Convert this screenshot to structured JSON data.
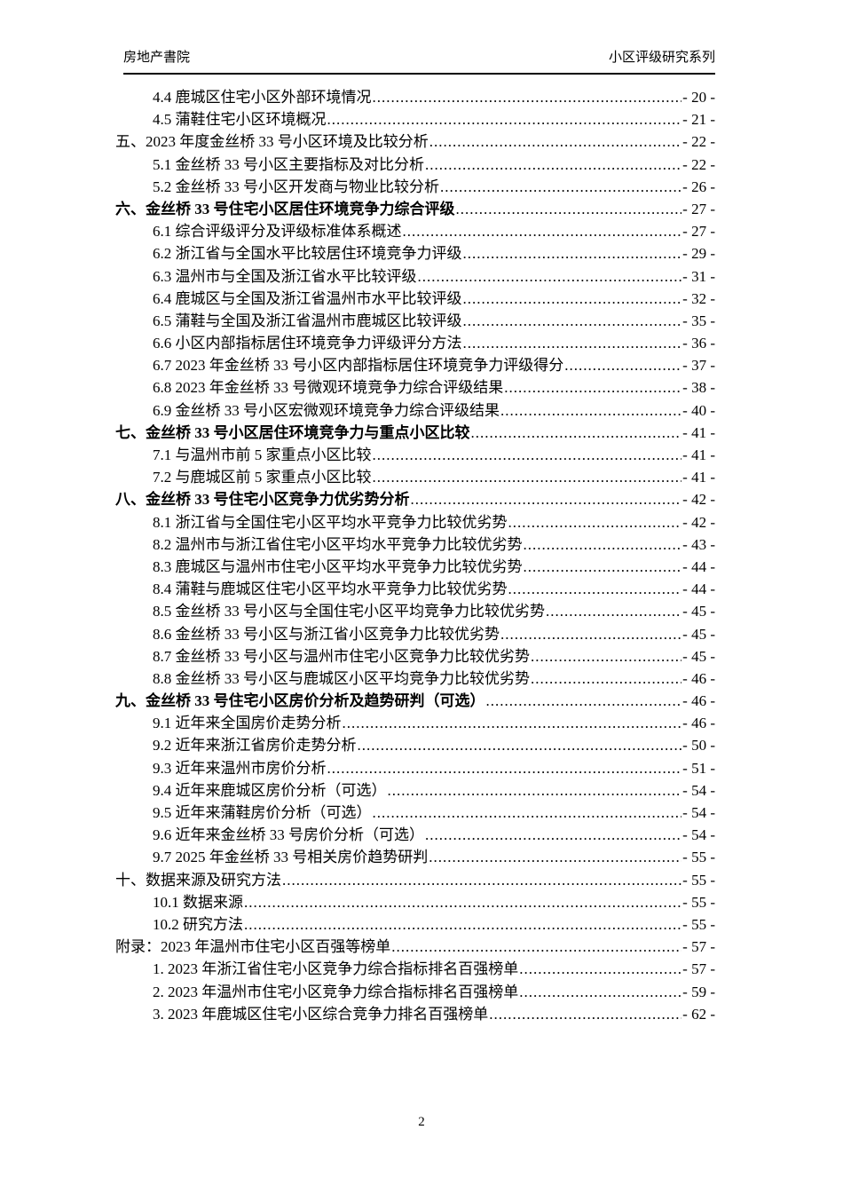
{
  "header": {
    "left_label": "房地产書院",
    "right_label": "小区评级研究系列"
  },
  "footer": {
    "page_number": "2"
  },
  "toc": {
    "entries": [
      {
        "label": "4.4 鹿城区住宅小区外部环境情况",
        "page": "- 20 -",
        "level": 2,
        "bold": false
      },
      {
        "label": "4.5 蒲鞋住宅小区环境概况",
        "page": "- 21 -",
        "level": 2,
        "bold": false
      },
      {
        "label": "五、2023 年度金丝桥 33 号小区环境及比较分析",
        "page": "- 22 -",
        "level": 1,
        "bold": false
      },
      {
        "label": "5.1 金丝桥 33 号小区主要指标及对比分析",
        "page": "- 22 -",
        "level": 2,
        "bold": false
      },
      {
        "label": "5.2 金丝桥 33 号小区开发商与物业比较分析",
        "page": "- 26 -",
        "level": 2,
        "bold": false
      },
      {
        "label": "六、金丝桥 33 号住宅小区居住环境竞争力综合评级",
        "page": "- 27 -",
        "level": 1,
        "bold": true
      },
      {
        "label": "6.1 综合评级评分及评级标准体系概述",
        "page": "- 27 -",
        "level": 2,
        "bold": false
      },
      {
        "label": "6.2 浙江省与全国水平比较居住环境竞争力评级",
        "page": "- 29 -",
        "level": 2,
        "bold": false
      },
      {
        "label": "6.3 温州市与全国及浙江省水平比较评级",
        "page": "- 31 -",
        "level": 2,
        "bold": false
      },
      {
        "label": "6.4 鹿城区与全国及浙江省温州市水平比较评级",
        "page": "- 32 -",
        "level": 2,
        "bold": false
      },
      {
        "label": "6.5 蒲鞋与全国及浙江省温州市鹿城区比较评级",
        "page": "- 35 -",
        "level": 2,
        "bold": false
      },
      {
        "label": "6.6 小区内部指标居住环境竞争力评级评分方法",
        "page": "- 36 -",
        "level": 2,
        "bold": false
      },
      {
        "label": "6.7 2023 年金丝桥 33 号小区内部指标居住环境竞争力评级得分",
        "page": "- 37 -",
        "level": 2,
        "bold": false
      },
      {
        "label": "6.8 2023 年金丝桥 33 号微观环境竞争力综合评级结果",
        "page": "- 38 -",
        "level": 2,
        "bold": false
      },
      {
        "label": "6.9 金丝桥 33 号小区宏微观环境竞争力综合评级结果",
        "page": "- 40 -",
        "level": 2,
        "bold": false
      },
      {
        "label": "七、金丝桥 33 号小区居住环境竞争力与重点小区比较",
        "page": "- 41 -",
        "level": 1,
        "bold": true
      },
      {
        "label": "7.1 与温州市前 5 家重点小区比较",
        "page": "- 41 -",
        "level": 2,
        "bold": false
      },
      {
        "label": "7.2 与鹿城区前 5 家重点小区比较",
        "page": "- 41 -",
        "level": 2,
        "bold": false
      },
      {
        "label": "八、金丝桥 33 号住宅小区竞争力优劣势分析",
        "page": "- 42 -",
        "level": 1,
        "bold": true
      },
      {
        "label": "8.1 浙江省与全国住宅小区平均水平竞争力比较优劣势",
        "page": "- 42 -",
        "level": 2,
        "bold": false
      },
      {
        "label": "8.2 温州市与浙江省住宅小区平均水平竞争力比较优劣势",
        "page": "- 43 -",
        "level": 2,
        "bold": false
      },
      {
        "label": "8.3 鹿城区与温州市住宅小区平均水平竞争力比较优劣势",
        "page": "- 44 -",
        "level": 2,
        "bold": false
      },
      {
        "label": "8.4 蒲鞋与鹿城区住宅小区平均水平竞争力比较优劣势",
        "page": "- 44 -",
        "level": 2,
        "bold": false
      },
      {
        "label": "8.5 金丝桥 33 号小区与全国住宅小区平均竞争力比较优劣势",
        "page": "- 45 -",
        "level": 2,
        "bold": false
      },
      {
        "label": "8.6 金丝桥 33 号小区与浙江省小区竞争力比较优劣势",
        "page": "- 45 -",
        "level": 2,
        "bold": false
      },
      {
        "label": "8.7 金丝桥 33 号小区与温州市住宅小区竞争力比较优劣势",
        "page": "- 45 -",
        "level": 2,
        "bold": false
      },
      {
        "label": "8.8 金丝桥 33 号小区与鹿城区小区平均竞争力比较优劣势",
        "page": "- 46 -",
        "level": 2,
        "bold": false
      },
      {
        "label": "九、金丝桥 33 号住宅小区房价分析及趋势研判（可选）",
        "page": "- 46 -",
        "level": 1,
        "bold": true
      },
      {
        "label": "9.1 近年来全国房价走势分析",
        "page": "- 46 -",
        "level": 2,
        "bold": false
      },
      {
        "label": "9.2 近年来浙江省房价走势分析",
        "page": "- 50 -",
        "level": 2,
        "bold": false
      },
      {
        "label": "9.3 近年来温州市房价分析",
        "page": "- 51 -",
        "level": 2,
        "bold": false
      },
      {
        "label": "9.4 近年来鹿城区房价分析（可选）",
        "page": "- 54 -",
        "level": 2,
        "bold": false
      },
      {
        "label": "9.5 近年来蒲鞋房价分析（可选）",
        "page": "- 54 -",
        "level": 2,
        "bold": false
      },
      {
        "label": "9.6 近年来金丝桥 33 号房价分析（可选）",
        "page": "- 54 -",
        "level": 2,
        "bold": false
      },
      {
        "label": "9.7 2025 年金丝桥 33 号相关房价趋势研判",
        "page": "- 55 -",
        "level": 2,
        "bold": false
      },
      {
        "label": "十、数据来源及研究方法",
        "page": "- 55 -",
        "level": 1,
        "bold": false
      },
      {
        "label": "10.1 数据来源",
        "page": "- 55 -",
        "level": 2,
        "bold": false
      },
      {
        "label": "10.2 研究方法",
        "page": "- 55 -",
        "level": 2,
        "bold": false
      },
      {
        "label": "附录：2023 年温州市住宅小区百强等榜单",
        "page": "- 57 -",
        "level": 1,
        "bold": false
      },
      {
        "label": "1. 2023 年浙江省住宅小区竞争力综合指标排名百强榜单",
        "page": "- 57 -",
        "level": 2,
        "bold": false
      },
      {
        "label": "2. 2023 年温州市住宅小区竞争力综合指标排名百强榜单",
        "page": "- 59 -",
        "level": 2,
        "bold": false
      },
      {
        "label": "3. 2023 年鹿城区住宅小区综合竞争力排名百强榜单",
        "page": "- 62 -",
        "level": 2,
        "bold": false
      }
    ]
  }
}
